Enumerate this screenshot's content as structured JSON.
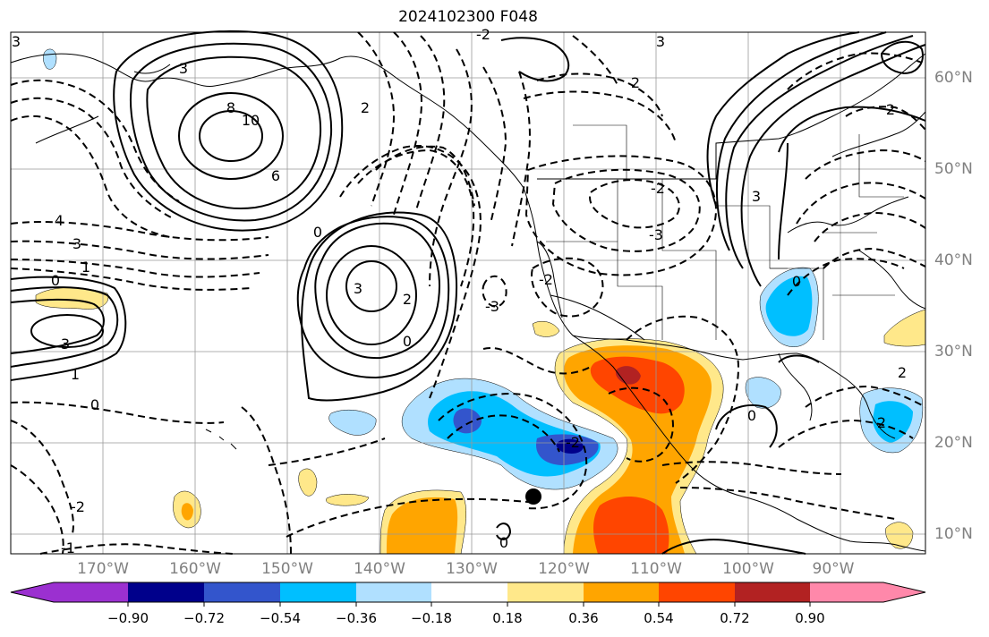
{
  "title": "2024102300 F048",
  "map": {
    "lat_labels": [
      "60°N",
      "50°N",
      "40°N",
      "30°N",
      "20°N",
      "10°N"
    ],
    "lon_labels": [
      "170°W",
      "160°W",
      "150°W",
      "140°W",
      "130°W",
      "120°W",
      "110°W",
      "100°W",
      "90°W"
    ],
    "contour_labels": [
      "3",
      "3",
      "8",
      "10",
      "6",
      "4",
      "3",
      "1",
      "0",
      "0",
      "3",
      "3",
      "1",
      "0",
      "2",
      "-2",
      "-2",
      "2",
      "0",
      "-2",
      "2",
      "-3",
      "3",
      "-3",
      "3",
      "0",
      "0",
      "2",
      "-2",
      "-2",
      "2",
      "-1",
      "0",
      "2"
    ],
    "marker": "black-dot"
  },
  "colorbar": {
    "tick_labels": [
      "−0.90",
      "−0.72",
      "−0.54",
      "−0.36",
      "−0.18",
      "0.18",
      "0.36",
      "0.54",
      "0.72",
      "0.90"
    ],
    "colors": [
      "#9b30d0",
      "#00008b",
      "#3355cc",
      "#00bfff",
      "#b0e0ff",
      "#ffffff",
      "#ffe88a",
      "#ffa500",
      "#ff4500",
      "#b22222",
      "#ff88aa"
    ]
  }
}
